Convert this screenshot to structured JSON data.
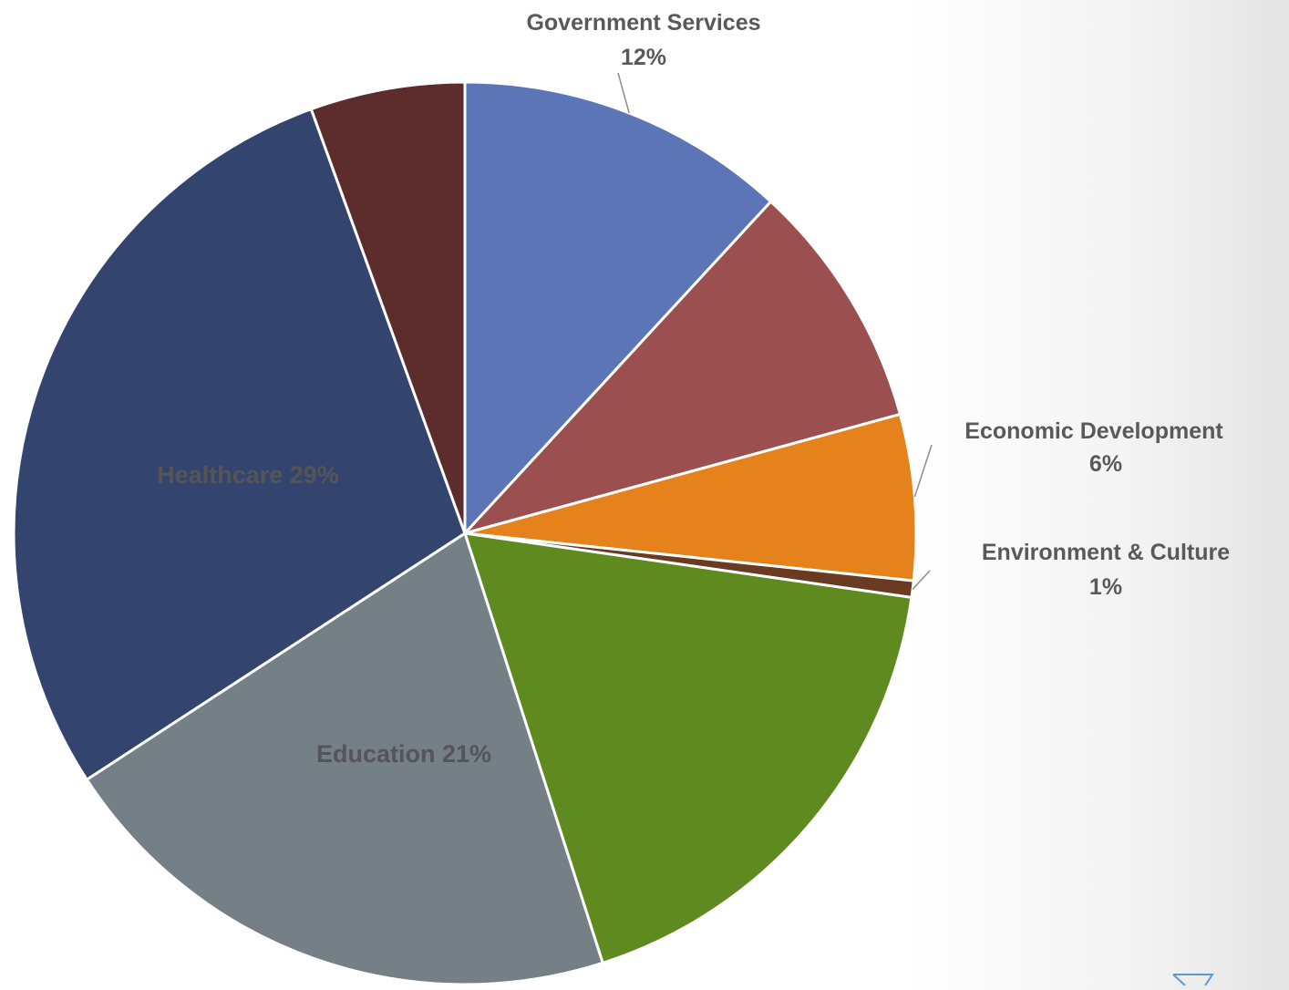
{
  "chart_data": {
    "type": "pie",
    "title": "",
    "slices": [
      {
        "name": "Government Services",
        "value": 12,
        "label_line1": "Government Services",
        "label_line2": "12%",
        "color": "#5b75b7"
      },
      {
        "name": "",
        "value": 9,
        "color": "#9c4f4f"
      },
      {
        "name": "Economic Development",
        "value": 6,
        "label_line1": "Economic Development",
        "label_line2": "6%",
        "color": "#e5821c"
      },
      {
        "name": "Environment & Culture",
        "value": 0.6,
        "label_line1": "Environment & Culture",
        "label_line2": "1%",
        "color": "#6b3a23"
      },
      {
        "name": "",
        "value": 18,
        "color": "#5e8a1f"
      },
      {
        "name": "Education",
        "value": 21,
        "label": "Education 21%",
        "color": "#747f86"
      },
      {
        "name": "Healthcare",
        "value": 29,
        "label": "Healthcare 29%",
        "color": "#33456e"
      },
      {
        "name": "",
        "value": 5.6,
        "color": "#5d2c2c"
      }
    ],
    "inside_label_color": "#555555",
    "legend": "none"
  }
}
